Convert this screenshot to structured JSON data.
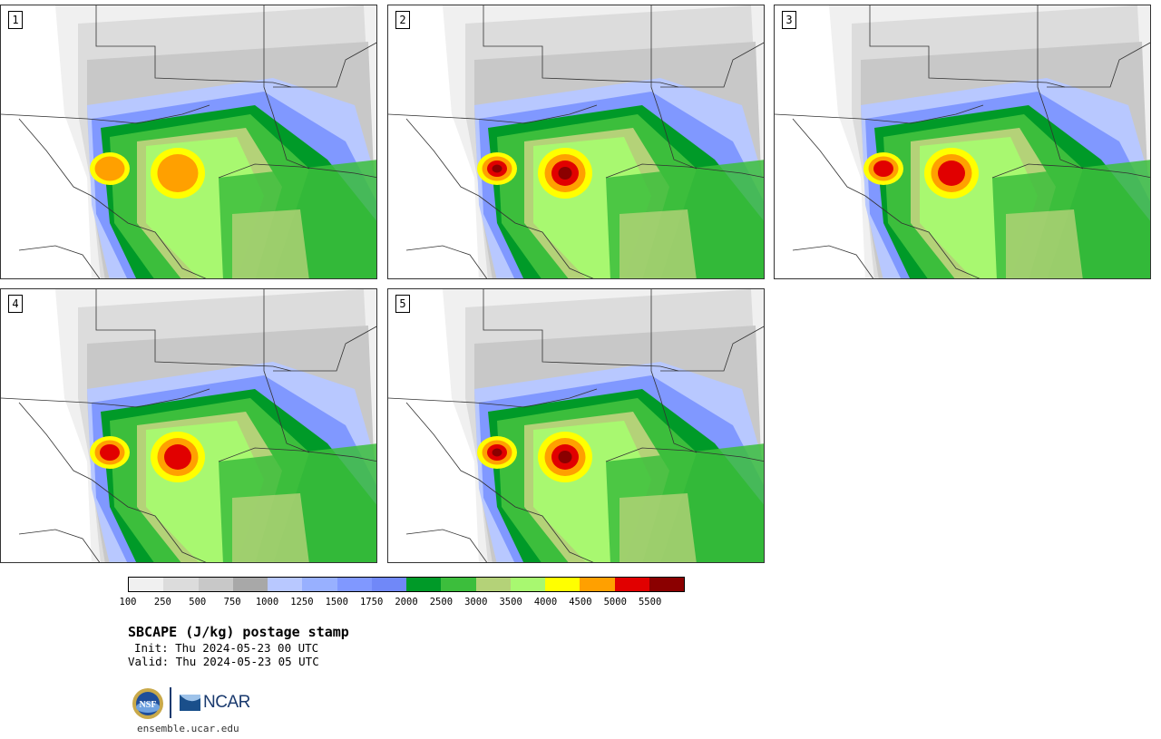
{
  "product": {
    "title": "SBCAPE (J/kg) postage stamp",
    "init": "Init: Thu 2024-05-23 00 UTC",
    "valid": "Valid: Thu 2024-05-23 05 UTC",
    "site": "ensemble.ucar.edu"
  },
  "panels": [
    {
      "label": "1",
      "intensity": 4500
    },
    {
      "label": "2",
      "intensity": 5500
    },
    {
      "label": "3",
      "intensity": 5000
    },
    {
      "label": "4",
      "intensity": 5000
    },
    {
      "label": "5",
      "intensity": 5500
    }
  ],
  "colorbar": {
    "ticks": [
      "100",
      "250",
      "500",
      "750",
      "1000",
      "1250",
      "1500",
      "1750",
      "2000",
      "2500",
      "3000",
      "3500",
      "4000",
      "4500",
      "5000",
      "5500"
    ],
    "colors": [
      "#f0f0f0",
      "#dcdcdc",
      "#c8c8c8",
      "#a8a8a8",
      "#b8c8ff",
      "#98b0ff",
      "#8098ff",
      "#7088f8",
      "#009a28",
      "#3cbe3c",
      "#b4d278",
      "#a8f870",
      "#ffff00",
      "#ffa000",
      "#e10000",
      "#8b0000"
    ]
  },
  "logos": {
    "nsf": "NSF",
    "ncar": "NCAR"
  },
  "icons": {
    "nsf_logo": "nsf-logo-icon",
    "ncar_logo": "ncar-logo-icon"
  }
}
